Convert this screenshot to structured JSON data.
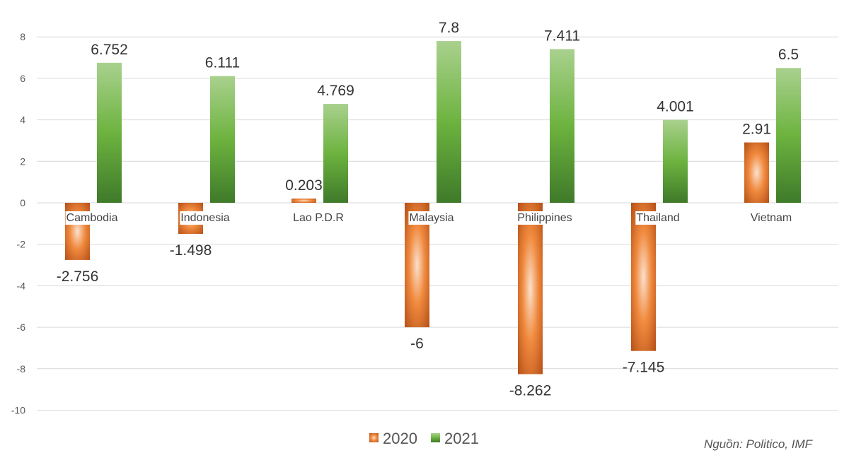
{
  "chart_data": {
    "type": "bar",
    "title": "",
    "categories": [
      "Cambodia",
      "Indonesia",
      "Lao P.D.R",
      "Malaysia",
      "Philippines",
      "Thailand",
      "Vietnam"
    ],
    "series": [
      {
        "name": "2020",
        "values": [
          -2.756,
          -1.498,
          0.203,
          -6,
          -8.262,
          -7.145,
          2.91
        ],
        "labels": [
          "-2.756",
          "-1.498",
          "0.203",
          "-6",
          "-8.262",
          "-7.145",
          "2.91"
        ],
        "color": "#e07a2e"
      },
      {
        "name": "2021",
        "values": [
          6.752,
          6.111,
          4.769,
          7.8,
          7.411,
          4.001,
          6.5
        ],
        "labels": [
          "6.752",
          "6.111",
          "4.769",
          "7.8",
          "7.411",
          "4.001",
          "6.5"
        ],
        "color": "#5aa83a"
      }
    ],
    "yticks": [
      "8",
      "6",
      "4",
      "2",
      "0",
      "-2",
      "-4",
      "-6",
      "-8",
      "-10"
    ],
    "ylim": [
      -10,
      8
    ],
    "grid": true,
    "legend": "bottom-center"
  },
  "source": "Nguồn: Politico, IMF"
}
